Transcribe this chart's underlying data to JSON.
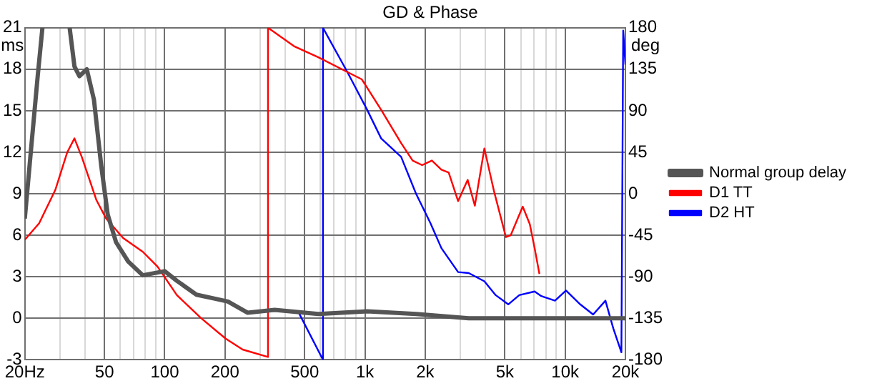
{
  "chart_data": {
    "type": "line",
    "title": "GD & Phase",
    "ylabel": "ms",
    "y2label": "deg",
    "log": "x",
    "grid": true,
    "legend": "right",
    "marker": "none",
    "line_style": "solid",
    "xlim": [
      20,
      20000
    ],
    "xticks": [
      {
        "value": 20,
        "label": "20Hz"
      },
      {
        "value": 30,
        "label": null
      },
      {
        "value": 40,
        "label": null
      },
      50,
      {
        "value": 60,
        "label": null
      },
      {
        "value": 70,
        "label": null
      },
      {
        "value": 80,
        "label": null
      },
      {
        "value": 90,
        "label": null
      },
      100,
      200,
      {
        "value": 300,
        "label": null
      },
      {
        "value": 400,
        "label": null
      },
      500,
      {
        "value": 600,
        "label": null
      },
      {
        "value": 700,
        "label": null
      },
      {
        "value": 800,
        "label": null
      },
      {
        "value": 900,
        "label": null
      },
      {
        "value": 1000,
        "label": "1k"
      },
      {
        "value": 2000,
        "label": "2k"
      },
      {
        "value": 3000,
        "label": null
      },
      {
        "value": 4000,
        "label": null
      },
      {
        "value": 5000,
        "label": "5k"
      },
      {
        "value": 6000,
        "label": null
      },
      {
        "value": 7000,
        "label": null
      },
      {
        "value": 8000,
        "label": null
      },
      {
        "value": 9000,
        "label": null
      },
      {
        "value": 10000,
        "label": "10k"
      },
      {
        "value": 20000,
        "label": "20k"
      }
    ],
    "ylim": [
      -3,
      21
    ],
    "yticks": [
      -3,
      0,
      3,
      6,
      9,
      12,
      15,
      18,
      21
    ],
    "y2lim": [
      -180,
      180
    ],
    "y2ticks": [
      -180,
      -135,
      -90,
      -45,
      0,
      45,
      90,
      135,
      180
    ],
    "series": [
      {
        "name": "Normal group delay",
        "color": "#555555",
        "x": [
          20,
          21.3,
          23.2,
          24.5,
          29,
          33.5,
          35.4,
          37.5,
          40.8,
          44.3,
          48.2,
          51.9,
          57.1,
          65.7,
          77.7,
          100,
          115,
          144,
          180,
          207,
          259,
          354,
          585,
          1026,
          1800,
          3300,
          20000
        ],
        "values": [
          7.2,
          11.6,
          17.5,
          21,
          null,
          21,
          18.2,
          17.5,
          18,
          15.8,
          11,
          7.5,
          5.5,
          4.1,
          3.1,
          3.4,
          2.7,
          1.7,
          1.4,
          1.2,
          0.4,
          0.6,
          0.3,
          0.5,
          0.3,
          0,
          0
        ]
      },
      {
        "name": "D1 TT",
        "color": "#ff0000",
        "axis": "y2",
        "x": [
          20,
          23.6,
          28.4,
          32.6,
          35.4,
          38.5,
          45.6,
          51,
          62,
          77.7,
          92,
          115,
          152,
          201,
          245,
          328,
          328,
          442,
          585,
          817,
          965,
          1205,
          1516,
          1731,
          1930,
          2160,
          2410,
          2620,
          2920,
          3260,
          3540,
          3950,
          4410,
          5060,
          5350,
          6140,
          6660,
          7040,
          7440
        ],
        "values": [
          -50,
          -32,
          4,
          45,
          60,
          40,
          -7,
          -27,
          -48,
          -63,
          -79,
          -110,
          -135,
          -157,
          -169,
          -177,
          180,
          160,
          148,
          132,
          124,
          91,
          55,
          36,
          31,
          36,
          26,
          23,
          -8,
          15,
          -13,
          49,
          3,
          -47,
          -45,
          -14,
          -33,
          -59,
          -87
        ]
      },
      {
        "name": "D2 HT",
        "color": "#0000ff",
        "axis": "y2",
        "x": [
          467,
          617,
          617,
          817,
          1026,
          1205,
          1516,
          1800,
          2125,
          2410,
          2920,
          3300,
          3950,
          4500,
          5200,
          5900,
          7040,
          7600,
          8900,
          10100,
          11900,
          13800,
          15900,
          17400,
          19100,
          19500,
          20000
        ],
        "values": [
          -129,
          -180,
          180,
          132,
          91,
          60,
          40,
          0,
          -32,
          -59,
          -85,
          -86,
          -95,
          -110,
          -120,
          -110,
          -106,
          -111,
          -116,
          -105,
          -120,
          -131,
          -116,
          -146,
          -172,
          177,
          140
        ]
      }
    ]
  }
}
